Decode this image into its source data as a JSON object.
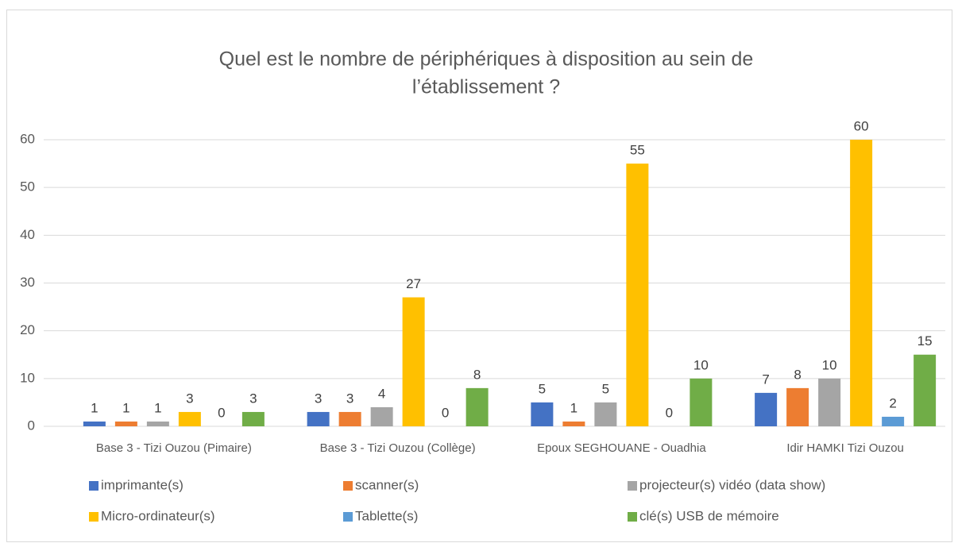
{
  "chart_data": {
    "type": "bar",
    "title": [
      "Quel est le nombre de périphériques à disposition au sein de",
      "l’établissement ?"
    ],
    "categories": [
      "Base 3 - Tizi Ouzou (Pimaire)",
      "Base 3 - Tizi Ouzou (Collège)",
      "Epoux SEGHOUANE - Ouadhia",
      "Idir HAMKI Tizi Ouzou"
    ],
    "series": [
      {
        "name": "imprimante(s)",
        "color": "#4472c4",
        "values": [
          1,
          3,
          5,
          7
        ]
      },
      {
        "name": "scanner(s)",
        "color": "#ed7d31",
        "values": [
          1,
          3,
          1,
          8
        ]
      },
      {
        "name": "projecteur(s) vidéo (data show)",
        "color": "#a5a5a5",
        "values": [
          1,
          4,
          5,
          10
        ]
      },
      {
        "name": "Micro-ordinateur(s)",
        "color": "#ffc000",
        "values": [
          3,
          27,
          55,
          60
        ]
      },
      {
        "name": "Tablette(s)",
        "color": "#5b9bd5",
        "values": [
          0,
          0,
          0,
          2
        ]
      },
      {
        "name": "clé(s) USB de mémoire",
        "color": "#70ad47",
        "values": [
          3,
          8,
          10,
          15
        ]
      }
    ],
    "ylim": [
      0,
      60
    ],
    "yticks": [
      0,
      10,
      20,
      30,
      40,
      50,
      60
    ],
    "grid": true,
    "legend": "bottom"
  }
}
